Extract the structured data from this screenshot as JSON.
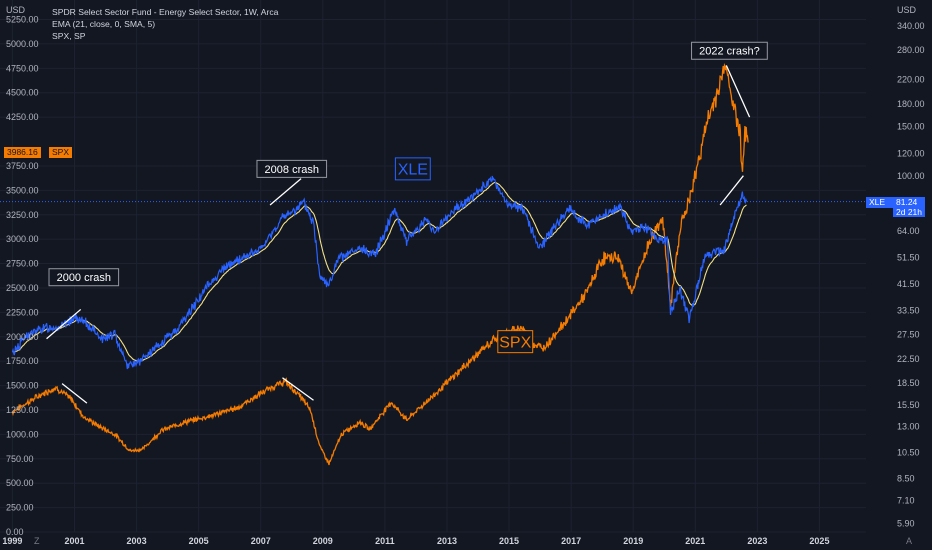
{
  "header": {
    "title": "SPDR Select Sector Fund - Energy Select Sector, 1W, Arca",
    "indicator": "EMA (21, close, 0, SMA, 5)",
    "overlay": "SPX, SP"
  },
  "left_unit": "USD",
  "right_unit": "USD",
  "corner_left": "Z",
  "corner_right": "A",
  "colors": {
    "bg": "#131722",
    "xle": "#2962ff",
    "spx": "#f57c00",
    "ema": "#f2e18a",
    "grid": "#1e2230",
    "text": "#b2b5be"
  },
  "chart_data": {
    "type": "line",
    "title": "SPDR Select Sector Fund - Energy Select Sector, 1W, Arca",
    "x_range": [
      1998.6,
      2026.5
    ],
    "x_ticks": [
      "1999",
      "2001",
      "2003",
      "2005",
      "2007",
      "2009",
      "2011",
      "2013",
      "2015",
      "2017",
      "2019",
      "2021",
      "2023",
      "2025"
    ],
    "left_axis": {
      "unit": "USD",
      "range": [
        0,
        5450
      ],
      "ticks": [
        "0.00",
        "250.00",
        "500.00",
        "750.00",
        "1000.00",
        "1250.00",
        "1500.00",
        "1750.00",
        "2000.00",
        "2250.00",
        "2500.00",
        "2750.00",
        "3000.00",
        "3250.00",
        "3500.00",
        "3750.00",
        "4250.00",
        "4500.00",
        "4750.00",
        "5000.00",
        "5250.00"
      ]
    },
    "right_axis": {
      "unit": "USD",
      "scale": "log",
      "range": [
        5.5,
        420
      ],
      "ticks": [
        "340.00",
        "280.00",
        "220.00",
        "180.00",
        "150.00",
        "120.00",
        "100.00",
        "64.00",
        "51.50",
        "41.50",
        "33.50",
        "27.50",
        "22.50",
        "18.50",
        "15.50",
        "13.00",
        "10.50",
        "8.50",
        "7.10",
        "5.90"
      ]
    },
    "series": [
      {
        "name": "SPX",
        "axis": "left",
        "points": [
          [
            1999.0,
            1230
          ],
          [
            1999.5,
            1330
          ],
          [
            2000.0,
            1420
          ],
          [
            2000.4,
            1480
          ],
          [
            2000.9,
            1360
          ],
          [
            2001.3,
            1180
          ],
          [
            2001.8,
            1080
          ],
          [
            2002.3,
            1000
          ],
          [
            2002.8,
            830
          ],
          [
            2003.2,
            850
          ],
          [
            2003.8,
            1040
          ],
          [
            2004.5,
            1120
          ],
          [
            2005.5,
            1200
          ],
          [
            2006.3,
            1280
          ],
          [
            2007.0,
            1420
          ],
          [
            2007.4,
            1490
          ],
          [
            2007.8,
            1540
          ],
          [
            2008.3,
            1380
          ],
          [
            2008.6,
            1250
          ],
          [
            2008.9,
            880
          ],
          [
            2009.2,
            700
          ],
          [
            2009.6,
            1000
          ],
          [
            2010.2,
            1130
          ],
          [
            2010.5,
            1050
          ],
          [
            2011.2,
            1330
          ],
          [
            2011.7,
            1150
          ],
          [
            2012.5,
            1380
          ],
          [
            2013.5,
            1680
          ],
          [
            2014.5,
            1970
          ],
          [
            2015.4,
            2100
          ],
          [
            2015.8,
            1920
          ],
          [
            2016.1,
            1880
          ],
          [
            2016.8,
            2150
          ],
          [
            2017.5,
            2450
          ],
          [
            2018.0,
            2800
          ],
          [
            2018.5,
            2820
          ],
          [
            2018.95,
            2450
          ],
          [
            2019.5,
            2950
          ],
          [
            2019.95,
            3230
          ],
          [
            2020.2,
            2300
          ],
          [
            2020.5,
            3100
          ],
          [
            2020.9,
            3500
          ],
          [
            2021.3,
            4100
          ],
          [
            2021.6,
            4400
          ],
          [
            2021.9,
            4700
          ],
          [
            2022.0,
            4790
          ],
          [
            2022.2,
            4400
          ],
          [
            2022.45,
            4100
          ],
          [
            2022.5,
            3700
          ],
          [
            2022.6,
            4100
          ],
          [
            2022.7,
            3990
          ]
        ]
      },
      {
        "name": "XLE",
        "axis": "right",
        "points": [
          [
            1999.0,
            23.5
          ],
          [
            1999.4,
            27
          ],
          [
            2000.0,
            29
          ],
          [
            2000.6,
            29.5
          ],
          [
            2001.0,
            31.5
          ],
          [
            2001.4,
            30
          ],
          [
            2001.9,
            26.5
          ],
          [
            2002.3,
            27.5
          ],
          [
            2002.7,
            21.5
          ],
          [
            2003.1,
            22
          ],
          [
            2003.7,
            25
          ],
          [
            2004.4,
            29.5
          ],
          [
            2005.3,
            41
          ],
          [
            2005.8,
            47
          ],
          [
            2006.5,
            52
          ],
          [
            2007.0,
            55
          ],
          [
            2007.7,
            71
          ],
          [
            2008.4,
            80
          ],
          [
            2008.7,
            68
          ],
          [
            2008.9,
            45
          ],
          [
            2009.2,
            41
          ],
          [
            2009.5,
            51
          ],
          [
            2010.2,
            55
          ],
          [
            2010.7,
            53
          ],
          [
            2011.3,
            77
          ],
          [
            2011.7,
            59
          ],
          [
            2012.3,
            70
          ],
          [
            2012.6,
            64
          ],
          [
            2013.3,
            77
          ],
          [
            2013.9,
            86
          ],
          [
            2014.5,
            98
          ],
          [
            2014.9,
            80
          ],
          [
            2015.5,
            76
          ],
          [
            2015.95,
            55
          ],
          [
            2016.5,
            67
          ],
          [
            2016.95,
            77
          ],
          [
            2017.5,
            67
          ],
          [
            2018.2,
            74
          ],
          [
            2018.6,
            78
          ],
          [
            2018.9,
            64
          ],
          [
            2019.4,
            66
          ],
          [
            2019.8,
            60
          ],
          [
            2020.1,
            59
          ],
          [
            2020.2,
            33
          ],
          [
            2020.5,
            40
          ],
          [
            2020.8,
            31
          ],
          [
            2021.3,
            52
          ],
          [
            2021.6,
            54
          ],
          [
            2021.95,
            55
          ],
          [
            2022.3,
            75
          ],
          [
            2022.5,
            85
          ],
          [
            2022.65,
            81.24
          ]
        ]
      }
    ],
    "last_values": {
      "SPX": "3986.16",
      "XLE": "81.24",
      "XLE_countdown": "2d 21h"
    },
    "annotations": [
      {
        "label": "2000 crash"
      },
      {
        "label": "2008 crash"
      },
      {
        "label": "2022 crash?"
      },
      {
        "label": "XLE"
      },
      {
        "label": "SPX"
      }
    ],
    "legend_placement": "top-left",
    "grid": true
  }
}
